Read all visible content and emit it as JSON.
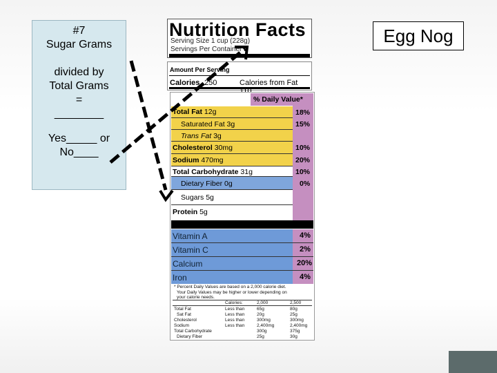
{
  "question": {
    "number": "#7",
    "line1": "Sugar Grams",
    "line2": "divided by",
    "line3": "Total Grams",
    "line4": "=",
    "line5": "________",
    "line6": "Yes_____ or",
    "line7": "No____"
  },
  "product_title": "Egg Nog",
  "label": {
    "title": "Nutrition Facts",
    "serving_size": "Serving Size 1 cup (228g)",
    "servings_per_container": "Servings Per Container  2",
    "amount_per_serving": "Amount Per Serving",
    "calories": "Calories",
    "calories_value": "250",
    "calories_from_fat": "Calories from Fat 110",
    "daily_value_header": "% Daily Value*",
    "nutrients": [
      {
        "name": "Total Fat",
        "amount": "12g",
        "pct": "18%",
        "bold": true
      },
      {
        "name": "Saturated Fat",
        "amount": "3g",
        "pct": "15%",
        "bold": false
      },
      {
        "name": "Trans Fat",
        "amount": "3g",
        "pct": "",
        "bold": false
      },
      {
        "name": "Cholesterol",
        "amount": "30mg",
        "pct": "10%",
        "bold": true
      },
      {
        "name": "Sodium",
        "amount": "470mg",
        "pct": "20%",
        "bold": true
      },
      {
        "name": "Total Carbohydrate",
        "amount": "31g",
        "pct": "10%",
        "bold": true
      },
      {
        "name": "Dietary Fiber",
        "amount": "0g",
        "pct": "0%",
        "bold": false
      },
      {
        "name": "Sugars",
        "amount": "5g",
        "pct": "",
        "bold": false
      },
      {
        "name": "Protein",
        "amount": "5g",
        "pct": "",
        "bold": true
      }
    ],
    "vitamins": [
      {
        "name": "Vitamin A",
        "pct": "4%"
      },
      {
        "name": "Vitamin C",
        "pct": "2%"
      },
      {
        "name": "Calcium",
        "pct": "20%"
      },
      {
        "name": "Iron",
        "pct": "4%"
      }
    ],
    "footnote1": "* Percent Daily Values are based on a 2,000 calorie diet.",
    "footnote2": "Your Daily Values may be higher or lower depending on",
    "footnote3": "your calorie needs.",
    "table": {
      "head": [
        "Calories:",
        "2,000",
        "2,500"
      ],
      "rows": [
        [
          "Total Fat",
          "Less than",
          "65g",
          "80g"
        ],
        [
          "Sat Fat",
          "Less than",
          "20g",
          "25g"
        ],
        [
          "Cholesterol",
          "Less than",
          "300mg",
          "300mg"
        ],
        [
          "Sodium",
          "Less than",
          "2,400mg",
          "2,400mg"
        ],
        [
          "Total Carbohydrate",
          "",
          "300g",
          "375g"
        ],
        [
          "Dietary Fiber",
          "",
          "25g",
          "30g"
        ]
      ]
    }
  },
  "colors": {
    "question_box": "#d6e8ee",
    "fat_yellow": "#f2d24a",
    "carb_blue": "#7fa6dc",
    "pct_pink": "#c58fc0",
    "vitamin_blue": "#6e9ad8"
  }
}
